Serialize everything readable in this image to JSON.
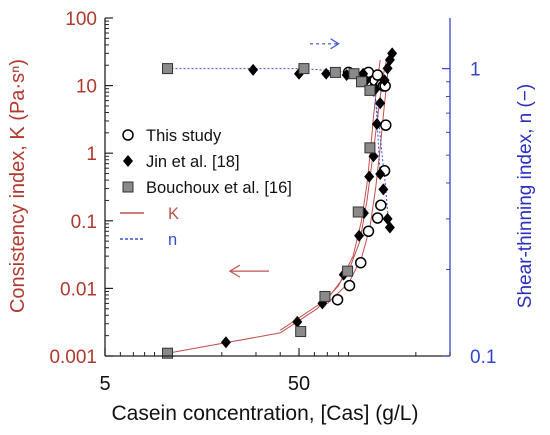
{
  "chart_data": {
    "type": "scatter",
    "xlabel": "Casein concentration, [Cas] (g/L)",
    "ylabel_left": "Consistency index, K (Pa·sⁿ)",
    "ylabel_right": "Shear-thinning index, n (−)",
    "x_scale": "log",
    "y_left_scale": "log",
    "y_right_scale": "log",
    "xlim": [
      5,
      300
    ],
    "ylim_left": [
      0.001,
      100
    ],
    "ylim_right": [
      0.1,
      1.5
    ],
    "x_ticks": [
      {
        "value": 5,
        "label": "5"
      },
      {
        "value": 50,
        "label": "50"
      }
    ],
    "y_left_ticks": [
      {
        "value": 0.001,
        "label": "0.001"
      },
      {
        "value": 0.01,
        "label": "0.01"
      },
      {
        "value": 0.1,
        "label": "0.1"
      },
      {
        "value": 1,
        "label": "1"
      },
      {
        "value": 10,
        "label": "10"
      },
      {
        "value": 100,
        "label": "100"
      }
    ],
    "y_right_ticks": [
      {
        "value": 0.1,
        "label": "0.1"
      },
      {
        "value": 1,
        "label": "1"
      }
    ],
    "colors": {
      "K": "#c0504d",
      "n": "#3a4fd0",
      "axis_right": "#3346c8",
      "label_left": "#b03a2e",
      "label_right": "#2b2fc0"
    },
    "legend": {
      "placement": "center-right",
      "entries": [
        {
          "label": "This study",
          "marker": "circle"
        },
        {
          "label": "Jin et al. [18]",
          "marker": "diamond"
        },
        {
          "label": "Bouchoux et al. [16]",
          "marker": "square"
        },
        {
          "label": "K",
          "marker": "line-K"
        },
        {
          "label": "n",
          "marker": "line-n"
        }
      ]
    },
    "series": [
      {
        "name": "This study",
        "marker": "circle",
        "K": [
          [
            79,
            0.0068
          ],
          [
            91,
            0.011
          ],
          [
            104,
            0.024
          ],
          [
            114,
            0.07
          ],
          [
            127,
            0.11
          ],
          [
            132,
            0.17
          ],
          [
            138,
            0.55
          ],
          [
            140,
            2.6
          ]
        ],
        "n": [
          [
            90,
            0.97
          ],
          [
            114,
            0.97
          ],
          [
            123,
            0.91
          ],
          [
            127,
            0.95
          ],
          [
            133,
            0.88
          ],
          [
            136,
            0.87
          ],
          [
            139,
            0.87
          ]
        ]
      },
      {
        "name": "Jin et al. [18]",
        "marker": "diamond",
        "K": [
          [
            21,
            0.0016
          ],
          [
            49,
            0.0032
          ],
          [
            66,
            0.006
          ],
          [
            85,
            0.016
          ],
          [
            102,
            0.06
          ],
          [
            108,
            0.13
          ],
          [
            115,
            0.45
          ],
          [
            121,
            0.9
          ],
          [
            126,
            2.7
          ],
          [
            131,
            5.5
          ],
          [
            138,
            12
          ],
          [
            143,
            18
          ],
          [
            147,
            24
          ],
          [
            151,
            30
          ]
        ],
        "n": [
          [
            29,
            0.99
          ],
          [
            50,
            0.96
          ],
          [
            69,
            0.96
          ],
          [
            88,
            0.95
          ],
          [
            107,
            0.96
          ],
          [
            111,
            0.91
          ],
          [
            118,
            0.85
          ],
          [
            124,
            0.85
          ],
          [
            131,
            0.43
          ],
          [
            136,
            0.38
          ],
          [
            143,
            0.3
          ],
          [
            147,
            0.28
          ]
        ]
      },
      {
        "name": "Bouchoux et al. [16]",
        "marker": "square",
        "K": [
          [
            10.5,
            0.0011
          ],
          [
            51,
            0.0023
          ],
          [
            68,
            0.0076
          ],
          [
            89,
            0.018
          ],
          [
            101,
            0.135
          ],
          [
            116,
            1.2
          ]
        ],
        "n": [
          [
            10.5,
            1.0
          ],
          [
            53,
            1.0
          ],
          [
            77,
            0.97
          ],
          [
            96,
            0.96
          ],
          [
            105,
            0.9
          ],
          [
            116,
            0.84
          ]
        ]
      }
    ],
    "fit_curves": {
      "K": [
        [
          [
            10.5,
            0.0011
          ],
          [
            40,
            0.0022
          ],
          [
            62,
            0.005
          ],
          [
            80,
            0.011
          ],
          [
            95,
            0.03
          ],
          [
            105,
            0.1
          ],
          [
            112,
            0.35
          ],
          [
            117,
            1.2
          ],
          [
            121,
            3.5
          ],
          [
            126,
            10
          ],
          [
            131,
            24
          ]
        ],
        [
          [
            40,
            0.0024
          ],
          [
            70,
            0.007
          ],
          [
            90,
            0.018
          ],
          [
            103,
            0.05
          ],
          [
            112,
            0.2
          ],
          [
            120,
            0.9
          ],
          [
            128,
            4
          ],
          [
            135,
            13
          ],
          [
            142,
            26
          ]
        ],
        [
          [
            70,
            0.006
          ],
          [
            90,
            0.012
          ],
          [
            105,
            0.028
          ],
          [
            116,
            0.08
          ],
          [
            124,
            0.3
          ],
          [
            131,
            1.2
          ],
          [
            137,
            4.5
          ],
          [
            142,
            12
          ],
          [
            145,
            22
          ]
        ]
      ],
      "n": [
        [
          [
            10.5,
            1.0
          ],
          [
            53,
            1.0
          ],
          [
            77,
            0.98
          ],
          [
            96,
            0.96
          ],
          [
            105,
            0.91
          ],
          [
            113,
            0.85
          ],
          [
            118,
            0.83
          ],
          [
            124,
            0.78
          ],
          [
            127,
            0.62
          ],
          [
            129,
            0.5
          ],
          [
            131,
            0.43
          ]
        ],
        [
          [
            124,
            0.78
          ],
          [
            130,
            0.62
          ],
          [
            134,
            0.5
          ],
          [
            139,
            0.4
          ],
          [
            143,
            0.32
          ],
          [
            147,
            0.28
          ]
        ]
      ]
    },
    "annotations": {
      "arrow_right_y": 1.22,
      "arrow_right_x_range": [
        57,
        80
      ],
      "arrow_left_y": 0.018,
      "arrow_left_x_range": [
        35,
        22
      ]
    }
  }
}
